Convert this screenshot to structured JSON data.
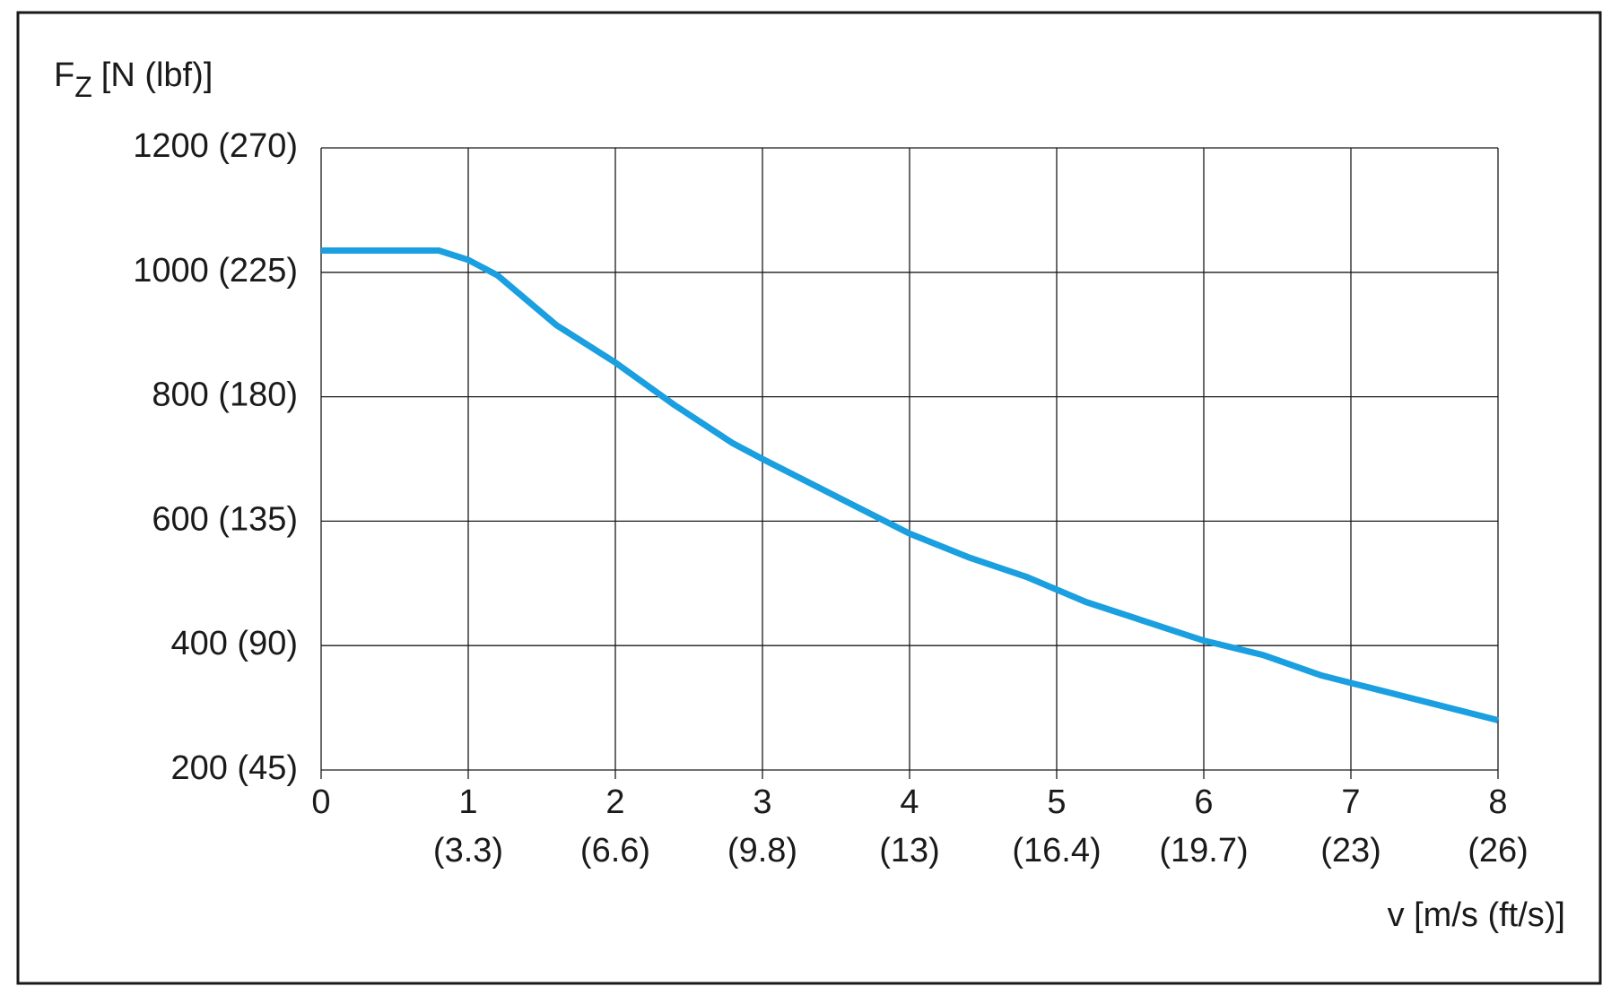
{
  "chart_data": {
    "type": "line",
    "y_label": {
      "main": "F",
      "sub": "Z",
      "unit": "[N (lbf)]"
    },
    "x_label": "v [m/s (ft/s)]",
    "x": [
      0,
      0.8,
      1.0,
      1.2,
      1.6,
      2.0,
      2.4,
      2.8,
      3.0,
      3.6,
      4.0,
      4.4,
      4.8,
      5.2,
      6.0,
      6.4,
      6.8,
      7.0,
      8.0
    ],
    "series": [
      {
        "color": "#1a9fe0",
        "values": [
          1035,
          1035,
          1020,
          995,
          915,
          855,
          787,
          725,
          700,
          628,
          580,
          542,
          510,
          470,
          408,
          385,
          352,
          340,
          280
        ]
      }
    ],
    "xlim": [
      0,
      8
    ],
    "xticks": [
      0,
      1,
      2,
      3,
      4,
      5,
      6,
      7,
      8
    ],
    "xtick_sublabels": [
      null,
      "(3.3)",
      "(6.6)",
      "(9.8)",
      "(13)",
      "(16.4)",
      "(19.7)",
      "(23)",
      "(26)"
    ],
    "ylim": [
      200,
      1200
    ],
    "yticks": [
      {
        "value": 200,
        "label": "200 (45)"
      },
      {
        "value": 400,
        "label": "400 (90)"
      },
      {
        "value": 600,
        "label": "600 (135)"
      },
      {
        "value": 800,
        "label": "800 (180)"
      },
      {
        "value": 1000,
        "label": "1000 (225)"
      },
      {
        "value": 1200,
        "label": "1200 (270)"
      }
    ],
    "grid": true
  }
}
